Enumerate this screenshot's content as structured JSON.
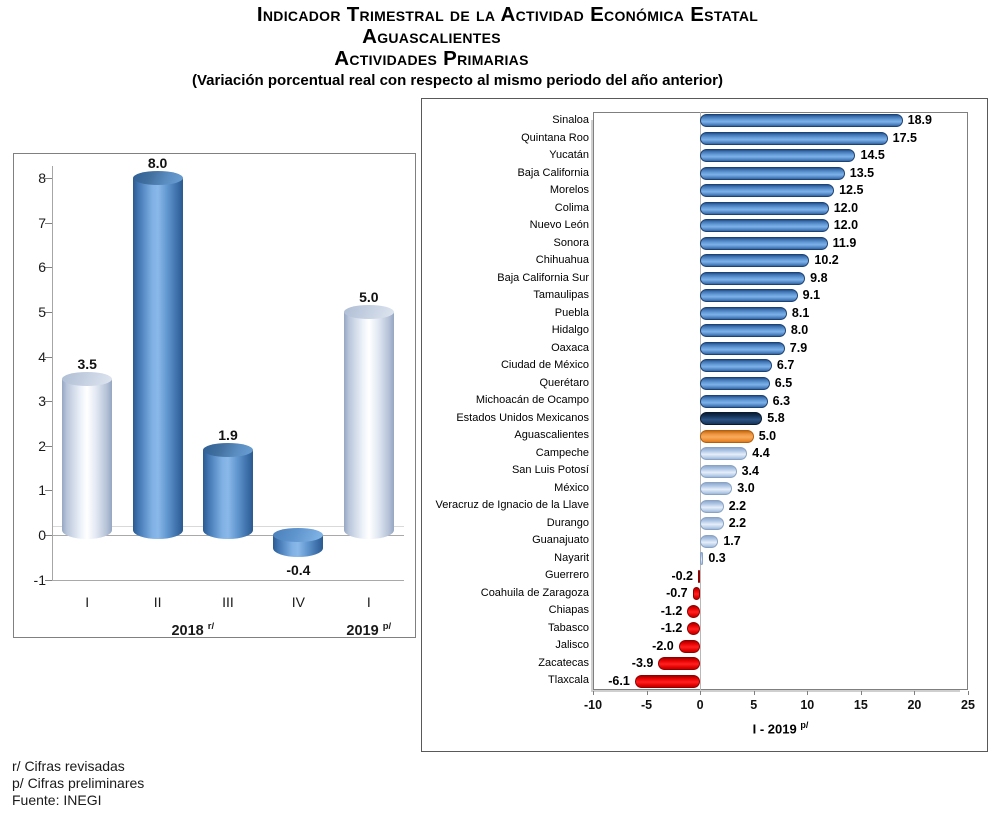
{
  "header": {
    "title_line1": "Indicador Trimestral de la Actividad Económica Estatal",
    "title_line2": "Aguascalientes",
    "title_line3": "Actividades Primarias",
    "subtitle": "(Variación porcentual real con respecto al mismo periodo del año anterior)"
  },
  "footnotes": {
    "lines": [
      "r/ Cifras revisadas",
      "p/ Cifras preliminares",
      "Fuente: INEGI"
    ]
  },
  "palette": {
    "steel_blue": "#4F81BD",
    "navy_blue": "#17375E",
    "orange": "#F79646",
    "light_blue": "#B7CDE8",
    "red": "#FF0000"
  },
  "chart_data": [
    {
      "type": "bar",
      "orientation": "vertical",
      "shape": "cylinder",
      "title": "",
      "categories": [
        "I",
        "II",
        "III",
        "IV",
        "I"
      ],
      "values": [
        3.5,
        8.0,
        1.9,
        -0.4,
        5.0
      ],
      "bar_colors": [
        "light",
        "blue",
        "blue",
        "blue",
        "light"
      ],
      "group_labels": [
        {
          "text": "2018",
          "sup": "r/",
          "from": 0,
          "to": 3
        },
        {
          "text": "2019",
          "sup": "p/",
          "from": 4,
          "to": 4
        }
      ],
      "ylim": [
        -1,
        8
      ],
      "yticks": [
        8,
        7,
        6,
        5,
        4,
        3,
        2,
        1,
        0,
        -1
      ],
      "grid": false
    },
    {
      "type": "bar",
      "orientation": "horizontal",
      "xlabel": "I - 2019",
      "xlabel_sup": "p/",
      "xlim": [
        -10,
        25
      ],
      "xticks": [
        -10,
        -5,
        0,
        5,
        10,
        15,
        20,
        25
      ],
      "categories": [
        "Sinaloa",
        "Quintana Roo",
        "Yucatán",
        "Baja California",
        "Morelos",
        "Colima",
        "Nuevo León",
        "Sonora",
        "Chihuahua",
        "Baja California Sur",
        "Tamaulipas",
        "Puebla",
        "Hidalgo",
        "Oaxaca",
        "Ciudad de México",
        "Querétaro",
        "Michoacán de Ocampo",
        "Estados Unidos Mexicanos",
        "Aguascalientes",
        "Campeche",
        "San Luis Potosí",
        "México",
        "Veracruz de Ignacio de la Llave",
        "Durango",
        "Guanajuato",
        "Nayarit",
        "Guerrero",
        "Coahuila de Zaragoza",
        "Chiapas",
        "Tabasco",
        "Jalisco",
        "Zacatecas",
        "Tlaxcala"
      ],
      "values": [
        18.9,
        17.5,
        14.5,
        13.5,
        12.5,
        12.0,
        12.0,
        11.9,
        10.2,
        9.8,
        9.1,
        8.1,
        8.0,
        7.9,
        6.7,
        6.5,
        6.3,
        5.8,
        5.0,
        4.4,
        3.4,
        3.0,
        2.2,
        2.2,
        1.7,
        0.3,
        -0.2,
        -0.7,
        -1.2,
        -1.2,
        -2.0,
        -3.9,
        -6.1
      ],
      "bar_colors": [
        "blue",
        "blue",
        "blue",
        "blue",
        "blue",
        "blue",
        "blue",
        "blue",
        "blue",
        "blue",
        "blue",
        "blue",
        "blue",
        "blue",
        "blue",
        "blue",
        "blue",
        "navy",
        "orange",
        "light",
        "light",
        "light",
        "light",
        "light",
        "light",
        "light",
        "red",
        "red",
        "red",
        "red",
        "red",
        "red",
        "red"
      ]
    }
  ]
}
